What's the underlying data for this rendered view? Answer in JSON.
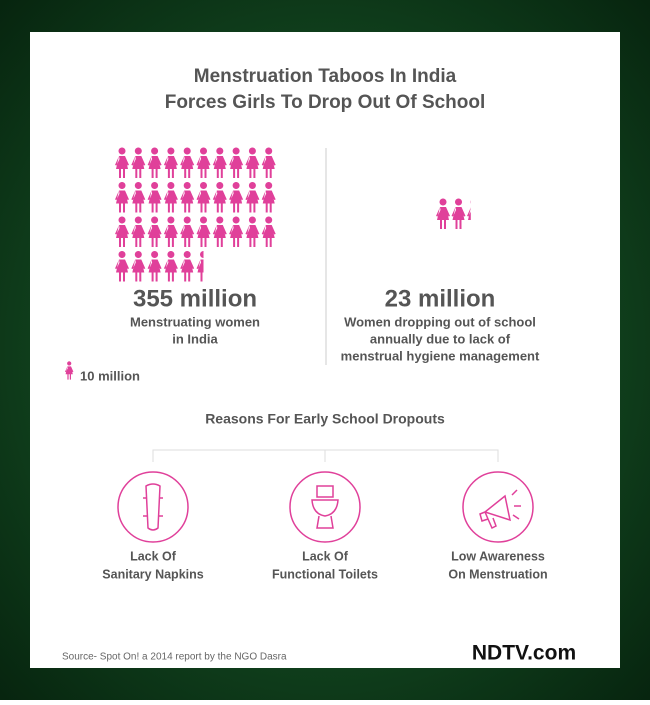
{
  "title_lines": [
    "Menstruation Taboos In India",
    "Forces Girls To Drop Out Of School"
  ],
  "icon_color": "#e0409a",
  "legend": {
    "label": "10 million",
    "value": 10
  },
  "stats": [
    {
      "label": "355 million",
      "value": 355,
      "description": [
        "Menstruating women",
        "in India"
      ]
    },
    {
      "label": "23 million",
      "value": 23,
      "description": [
        "Women dropping out of school",
        "annually due to lack of",
        "menstrual hygiene management"
      ]
    }
  ],
  "reasons": {
    "heading": "Reasons For Early School Dropouts",
    "items": [
      [
        "Lack Of",
        "Sanitary Napkins"
      ],
      [
        "Lack Of",
        "Functional Toilets"
      ],
      [
        "Low Awareness",
        "On Menstruation"
      ]
    ]
  },
  "source": "Source- Spot On! a 2014 report by the NGO Dasra",
  "logo": "NDTV.com"
}
